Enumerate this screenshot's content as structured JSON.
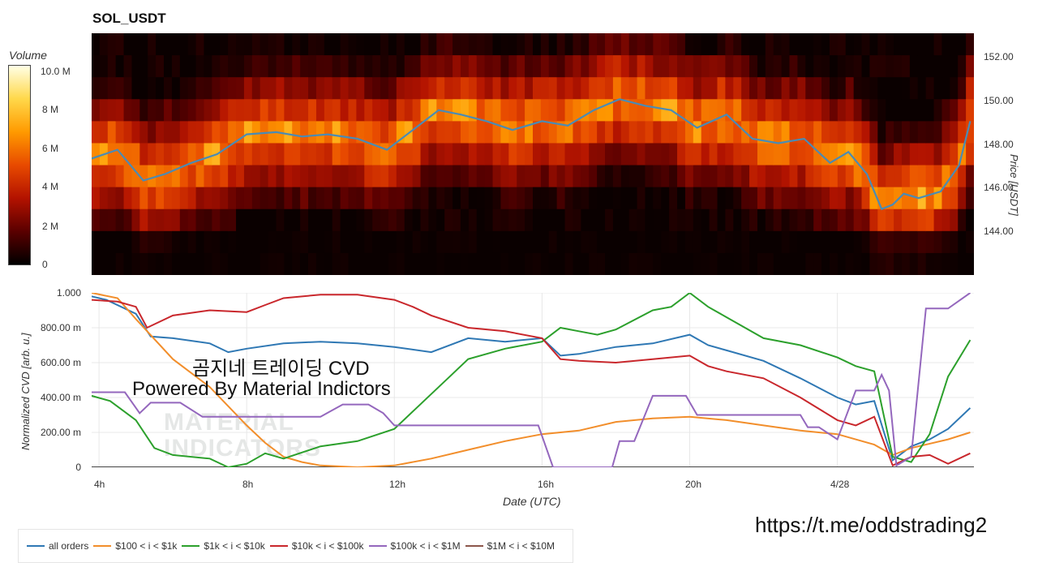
{
  "title": "SOL_USDT",
  "overlay": {
    "line1": "곰지네 트레이딩 CVD",
    "line2": "Powered By Material Indictors",
    "watermark_line1": "MATERIAL",
    "watermark_line2": "INDICATORS"
  },
  "url_text": "https://t.me/oddstrading2",
  "colorbar": {
    "title": "Volume",
    "ticks": [
      "10.0 M",
      "8 M",
      "6 M",
      "4 M",
      "2 M",
      "0"
    ],
    "colors": [
      "#000000",
      "#5a0000",
      "#b31200",
      "#e84a00",
      "#ff9a00",
      "#ffd84a",
      "#ffffe6"
    ]
  },
  "chart_data": [
    {
      "type": "heatmap",
      "title": "SOL_USDT",
      "ylabel": "Price [USDT]",
      "y_ticks": [
        "152.00",
        "150.00",
        "148.00",
        "146.00",
        "144.00"
      ],
      "ylim": [
        142,
        153
      ],
      "overlay_series": {
        "name": "Price",
        "color": "#4a8bb5",
        "x_hours": [
          3.8,
          4.5,
          5.2,
          5.8,
          6.5,
          7.2,
          8.0,
          8.8,
          9.5,
          10.2,
          11.0,
          11.8,
          12.5,
          13.2,
          13.8,
          14.5,
          15.2,
          16.0,
          16.7,
          17.4,
          18.1,
          18.8,
          19.5,
          20.2,
          21.0,
          21.7,
          22.4,
          23.1,
          23.8,
          24.3,
          24.8,
          25.2,
          25.5,
          25.8,
          26.2,
          26.8,
          27.3,
          27.6
        ],
        "values": [
          147.3,
          147.7,
          146.3,
          146.6,
          147.1,
          147.5,
          148.4,
          148.5,
          148.3,
          148.4,
          148.2,
          147.7,
          148.6,
          149.5,
          149.3,
          149.0,
          148.6,
          149.0,
          148.8,
          149.5,
          150.0,
          149.7,
          149.5,
          148.7,
          149.3,
          148.2,
          148.0,
          148.2,
          147.1,
          147.6,
          146.6,
          145.0,
          145.2,
          145.7,
          145.5,
          145.8,
          147.0,
          149.0
        ]
      }
    },
    {
      "type": "line",
      "xlabel": "Date (UTC)",
      "ylabel": "Normalized CVD [arb. u.]",
      "ylim": [
        0,
        1
      ],
      "y_ticks": [
        "1.000",
        "800.00 m",
        "600.00 m",
        "400.00 m",
        "200.00 m",
        "0"
      ],
      "x_ticks": [
        "4h",
        "8h",
        "12h",
        "16h",
        "20h",
        "4/28"
      ],
      "x_tick_hours": [
        4,
        8,
        12,
        16,
        20,
        24
      ],
      "xlim_hours": [
        3.8,
        27.7
      ],
      "grid": true,
      "legend_position": "bottom",
      "series": [
        {
          "name": "all orders",
          "color": "#2f78b4",
          "x": [
            3.8,
            4.2,
            5.0,
            5.4,
            6.0,
            7.0,
            7.5,
            8.0,
            9.0,
            10.0,
            11.0,
            12.0,
            13.0,
            14.0,
            15.0,
            16.0,
            16.5,
            17.0,
            18.0,
            19.0,
            20.0,
            20.5,
            21.0,
            22.0,
            23.0,
            24.0,
            24.5,
            25.0,
            25.5,
            26.0,
            26.5,
            27.0,
            27.6
          ],
          "y": [
            0.98,
            0.96,
            0.88,
            0.75,
            0.74,
            0.71,
            0.66,
            0.68,
            0.71,
            0.72,
            0.71,
            0.69,
            0.66,
            0.74,
            0.72,
            0.74,
            0.64,
            0.65,
            0.69,
            0.71,
            0.76,
            0.7,
            0.67,
            0.61,
            0.51,
            0.4,
            0.36,
            0.38,
            0.04,
            0.12,
            0.16,
            0.22,
            0.34
          ]
        },
        {
          "name": "$100 < i < $1k",
          "color": "#f28e2b",
          "x": [
            3.8,
            4.5,
            5.0,
            6.0,
            7.0,
            8.0,
            8.5,
            9.0,
            9.5,
            10.0,
            11.0,
            12.0,
            13.0,
            14.0,
            15.0,
            16.0,
            17.0,
            18.0,
            19.0,
            20.0,
            21.0,
            22.0,
            23.0,
            24.0,
            25.0,
            25.5,
            26.0,
            27.0,
            27.6
          ],
          "y": [
            1.0,
            0.97,
            0.85,
            0.62,
            0.46,
            0.24,
            0.14,
            0.06,
            0.03,
            0.01,
            0.0,
            0.01,
            0.05,
            0.1,
            0.15,
            0.19,
            0.21,
            0.26,
            0.28,
            0.29,
            0.27,
            0.24,
            0.21,
            0.19,
            0.13,
            0.07,
            0.11,
            0.16,
            0.2
          ]
        },
        {
          "name": "$1k < i < $10k",
          "color": "#2ca02c",
          "x": [
            3.8,
            4.3,
            5.0,
            5.5,
            6.0,
            7.0,
            7.5,
            8.0,
            8.5,
            9.0,
            10.0,
            11.0,
            12.0,
            12.8,
            13.5,
            14.0,
            15.0,
            16.0,
            16.5,
            17.0,
            17.5,
            18.0,
            19.0,
            19.5,
            20.0,
            20.5,
            21.0,
            22.0,
            23.0,
            24.0,
            24.5,
            25.0,
            25.5,
            26.0,
            26.5,
            27.0,
            27.6
          ],
          "y": [
            0.41,
            0.38,
            0.27,
            0.11,
            0.07,
            0.05,
            0.0,
            0.02,
            0.08,
            0.05,
            0.12,
            0.15,
            0.22,
            0.38,
            0.52,
            0.62,
            0.68,
            0.72,
            0.8,
            0.78,
            0.76,
            0.79,
            0.9,
            0.92,
            1.0,
            0.92,
            0.86,
            0.74,
            0.7,
            0.63,
            0.58,
            0.55,
            0.06,
            0.03,
            0.19,
            0.52,
            0.73
          ]
        },
        {
          "name": "$10k < i < $100k",
          "color": "#c9272c",
          "x": [
            3.8,
            4.5,
            5.0,
            5.3,
            6.0,
            7.0,
            8.0,
            8.5,
            9.0,
            10.0,
            11.0,
            12.0,
            12.5,
            13.0,
            14.0,
            15.0,
            16.0,
            16.5,
            17.0,
            18.0,
            19.0,
            20.0,
            20.5,
            21.0,
            22.0,
            23.0,
            24.0,
            24.5,
            25.0,
            25.5,
            26.0,
            26.5,
            27.0,
            27.6
          ],
          "y": [
            0.96,
            0.95,
            0.92,
            0.8,
            0.87,
            0.9,
            0.89,
            0.93,
            0.97,
            0.99,
            0.99,
            0.96,
            0.92,
            0.87,
            0.8,
            0.78,
            0.74,
            0.62,
            0.61,
            0.6,
            0.62,
            0.64,
            0.58,
            0.55,
            0.51,
            0.4,
            0.27,
            0.24,
            0.29,
            0.01,
            0.06,
            0.07,
            0.02,
            0.08
          ]
        },
        {
          "name": "$100k < i < $1M",
          "color": "#9467bd",
          "x": [
            3.8,
            4.7,
            5.1,
            5.4,
            6.2,
            6.8,
            7.7,
            8.0,
            9.0,
            10.0,
            10.6,
            11.3,
            11.7,
            12.0,
            13.0,
            14.0,
            15.0,
            15.9,
            16.3,
            17.0,
            17.9,
            18.1,
            18.5,
            19.0,
            19.9,
            20.2,
            21.0,
            22.0,
            23.0,
            23.2,
            23.5,
            24.0,
            24.5,
            25.0,
            25.2,
            25.4,
            25.6,
            26.0,
            26.4,
            27.0,
            27.6
          ],
          "y": [
            0.43,
            0.43,
            0.31,
            0.37,
            0.37,
            0.29,
            0.29,
            0.29,
            0.29,
            0.29,
            0.36,
            0.36,
            0.31,
            0.24,
            0.24,
            0.24,
            0.24,
            0.24,
            0.0,
            0.0,
            0.0,
            0.15,
            0.15,
            0.41,
            0.41,
            0.3,
            0.3,
            0.3,
            0.3,
            0.23,
            0.23,
            0.16,
            0.44,
            0.44,
            0.53,
            0.44,
            0.01,
            0.06,
            0.91,
            0.91,
            1.0
          ]
        },
        {
          "name": "$1M < i < $10M",
          "color": "#8c564b",
          "x": [],
          "y": []
        }
      ]
    }
  ],
  "legend": [
    {
      "label": "all orders",
      "color": "#2f78b4"
    },
    {
      "label": "$100 < i < $1k",
      "color": "#f28e2b"
    },
    {
      "label": "$1k < i < $10k",
      "color": "#2ca02c"
    },
    {
      "label": "$10k < i < $100k",
      "color": "#c9272c"
    },
    {
      "label": "$100k < i < $1M",
      "color": "#9467bd"
    },
    {
      "label": "$1M < i < $10M",
      "color": "#8c564b"
    }
  ]
}
